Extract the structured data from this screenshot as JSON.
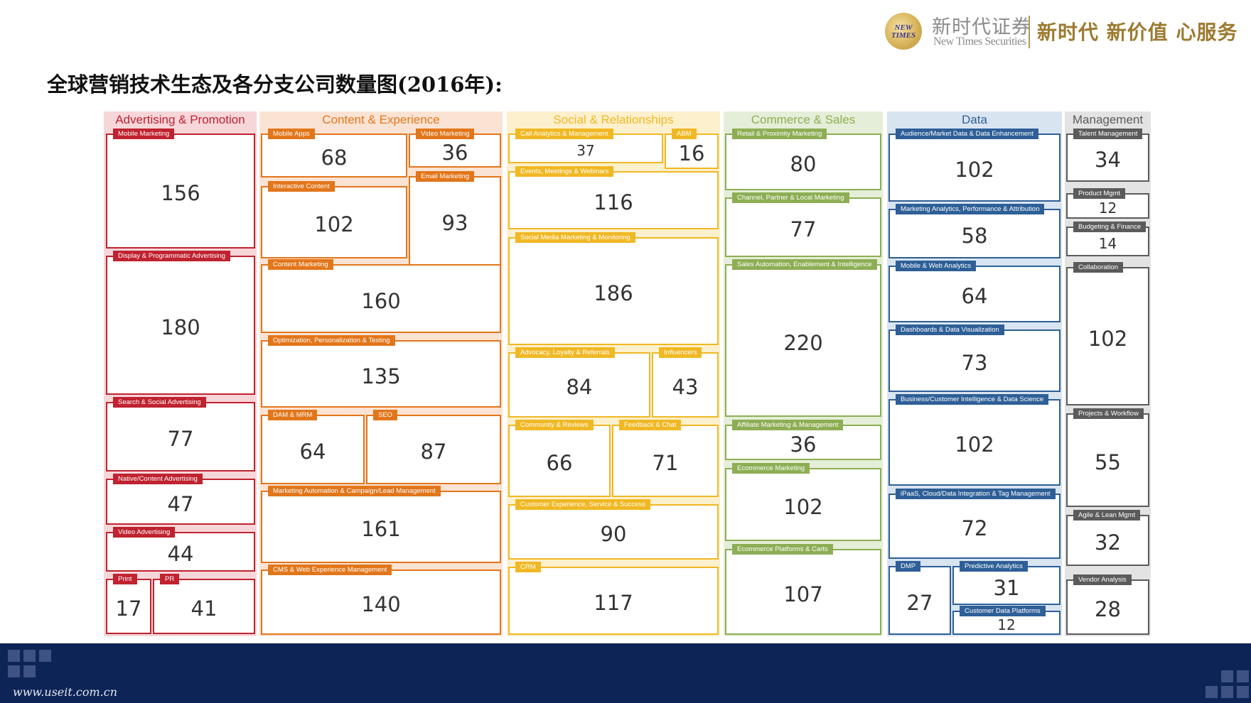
{
  "header": {
    "logo_badge": "NEW TIMES",
    "company_cn": "新时代证券",
    "company_en": "New Times Securities",
    "slogan": "新时代 新价值 心服务"
  },
  "page_title": "全球营销技术生态及各分支公司数量图(2016年):",
  "footer": {
    "url": "www.useit.com.cn"
  },
  "columns": [
    {
      "title": "Advertising & Promotion",
      "color": "#c0222f",
      "bg": "#f6d6d9",
      "items": [
        {
          "label": "Mobile Marketing",
          "value": "156"
        },
        {
          "label": "Display & Programmatic Advertising",
          "value": "180"
        },
        {
          "label": "Search & Social Advertising",
          "value": "77"
        },
        {
          "label": "Native/Content Advertising",
          "value": "47"
        },
        {
          "label": "Video Advertising",
          "value": "44"
        },
        {
          "label": "Print",
          "value": "17"
        },
        {
          "label": "PR",
          "value": "41"
        }
      ]
    },
    {
      "title": "Content & Experience",
      "color": "#e2761b",
      "bg": "#fbe3d3",
      "items": [
        {
          "label": "Mobile Apps",
          "value": "68"
        },
        {
          "label": "Video Marketing",
          "value": "36"
        },
        {
          "label": "Interactive Content",
          "value": "102"
        },
        {
          "label": "Email Marketing",
          "value": "93"
        },
        {
          "label": "Content Marketing",
          "value": "160"
        },
        {
          "label": "Optimization, Personalization & Testing",
          "value": "135"
        },
        {
          "label": "DAM & MRM",
          "value": "64"
        },
        {
          "label": "SEO",
          "value": "87"
        },
        {
          "label": "Marketing Automation & Campaign/Lead Management",
          "value": "161"
        },
        {
          "label": "CMS & Web Experience Management",
          "value": "140"
        }
      ]
    },
    {
      "title": "Social & Relationships",
      "color": "#f0b824",
      "bg": "#fdf0cc",
      "items": [
        {
          "label": "Call Analytics & Management",
          "value": "37"
        },
        {
          "label": "ABM",
          "value": "16"
        },
        {
          "label": "Events, Meetings & Webinars",
          "value": "116"
        },
        {
          "label": "Social Media Marketing & Monitoring",
          "value": "186"
        },
        {
          "label": "Advocacy, Loyalty & Referrals",
          "value": "84"
        },
        {
          "label": "Influencers",
          "value": "43"
        },
        {
          "label": "Community & Reviews",
          "value": "66"
        },
        {
          "label": "Feedback & Chat",
          "value": "71"
        },
        {
          "label": "Customer Experience, Service & Success",
          "value": "90"
        },
        {
          "label": "CRM",
          "value": "117"
        }
      ]
    },
    {
      "title": "Commerce & Sales",
      "color": "#8dae54",
      "bg": "#e5eed8",
      "items": [
        {
          "label": "Retail & Proximity Marketing",
          "value": "80"
        },
        {
          "label": "Channel, Partner & Local Marketing",
          "value": "77"
        },
        {
          "label": "Sales Automation, Enablement & Intelligence",
          "value": "220"
        },
        {
          "label": "Affiliate Marketing & Management",
          "value": "36"
        },
        {
          "label": "Ecommerce Marketing",
          "value": "102"
        },
        {
          "label": "Ecommerce Platforms & Carts",
          "value": "107"
        }
      ]
    },
    {
      "title": "Data",
      "color": "#2e5f97",
      "bg": "#d9e4f1",
      "items": [
        {
          "label": "Audience/Market Data & Data Enhancement",
          "value": "102"
        },
        {
          "label": "Marketing Analytics, Performance & Attribution",
          "value": "58"
        },
        {
          "label": "Mobile & Web Analytics",
          "value": "64"
        },
        {
          "label": "Dashboards & Data Visualization",
          "value": "73"
        },
        {
          "label": "Business/Customer Intelligence & Data Science",
          "value": "102"
        },
        {
          "label": "iPaaS, Cloud/Data Integration & Tag Management",
          "value": "72"
        },
        {
          "label": "DMP",
          "value": "27"
        },
        {
          "label": "Predictive Analytics",
          "value": "31"
        },
        {
          "label": "Customer Data Platforms",
          "value": "12"
        }
      ]
    },
    {
      "title": "Management",
      "color": "#5b5b5b",
      "bg": "#e3e3e3",
      "items": [
        {
          "label": "Talent Management",
          "value": "34"
        },
        {
          "label": "Product Mgmt",
          "value": "12"
        },
        {
          "label": "Budgeting & Finance",
          "value": "14"
        },
        {
          "label": "Collaboration",
          "value": "102"
        },
        {
          "label": "Projects & Workflow",
          "value": "55"
        },
        {
          "label": "Agile & Lean Mgmt",
          "value": "32"
        },
        {
          "label": "Vendor Analysis",
          "value": "28"
        }
      ]
    }
  ]
}
